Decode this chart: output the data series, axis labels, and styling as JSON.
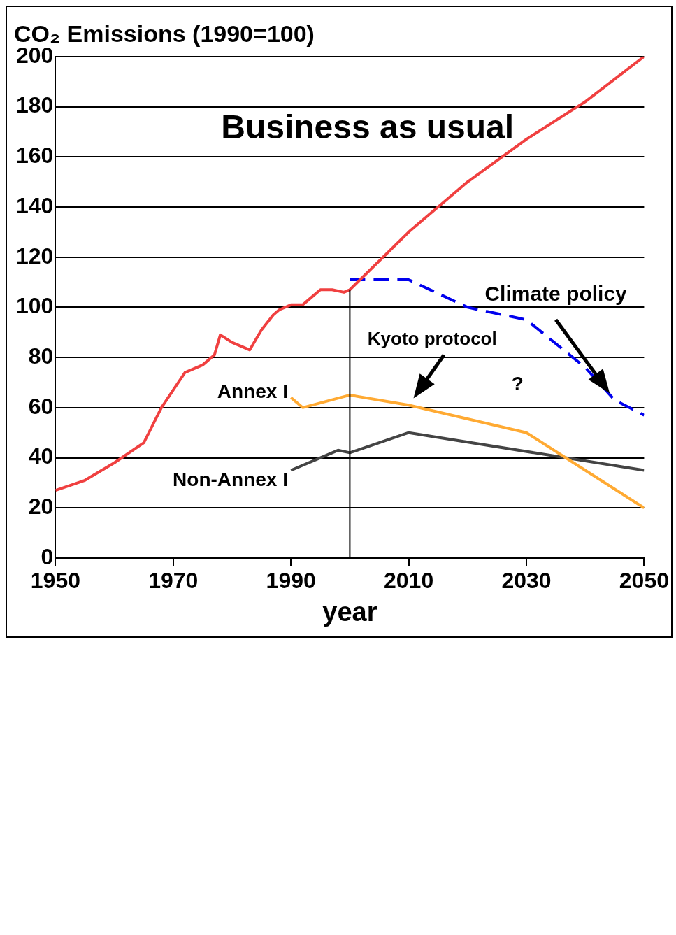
{
  "chart_data": {
    "type": "line",
    "title": "CO₂ Emissions (1990=100)",
    "xlabel": "year",
    "xlim": [
      1950,
      2050
    ],
    "xticks": [
      1950,
      1970,
      1990,
      2010,
      2030,
      2050
    ],
    "ylim": [
      0,
      200
    ],
    "yticks": [
      0,
      20,
      40,
      60,
      80,
      100,
      120,
      140,
      160,
      180,
      200
    ],
    "grid": "y",
    "legend": false,
    "marker": "none",
    "ref_lines": [
      {
        "axis": "x",
        "value": 2000
      }
    ],
    "annotations": [
      "Kyoto protocol",
      "?"
    ],
    "series": [
      {
        "name": "Business as usual",
        "color": "#f04040",
        "line_style": "solid",
        "x": [
          1950,
          1955,
          1960,
          1965,
          1968,
          1970,
          1972,
          1975,
          1977,
          1978,
          1980,
          1983,
          1985,
          1987,
          1988,
          1990,
          1992,
          1993,
          1995,
          1997,
          1999,
          2000,
          2010,
          2020,
          2030,
          2040,
          2050
        ],
        "values": [
          27,
          31,
          38,
          46,
          60,
          67,
          74,
          77,
          81,
          89,
          86,
          83,
          91,
          97,
          99,
          101,
          101,
          103,
          107,
          107,
          106,
          107,
          130,
          150,
          167,
          182,
          200
        ]
      },
      {
        "name": "Climate policy",
        "color": "#0000ee",
        "line_style": "dashed",
        "x": [
          2000,
          2010,
          2020,
          2030,
          2040,
          2045,
          2050
        ],
        "values": [
          111,
          111,
          100,
          95,
          76,
          63,
          57
        ]
      },
      {
        "name": "Annex I",
        "color": "#ffaa33",
        "line_style": "solid",
        "x": [
          1990,
          1992,
          2000,
          2010,
          2030,
          2040,
          2050
        ],
        "values": [
          64,
          60,
          65,
          61,
          50,
          35,
          20
        ]
      },
      {
        "name": "Non-Annex I",
        "color": "#444444",
        "line_style": "solid",
        "x": [
          1990,
          1995,
          1998,
          2000,
          2010,
          2050
        ],
        "values": [
          35,
          40,
          43,
          42,
          50,
          35
        ]
      }
    ]
  }
}
